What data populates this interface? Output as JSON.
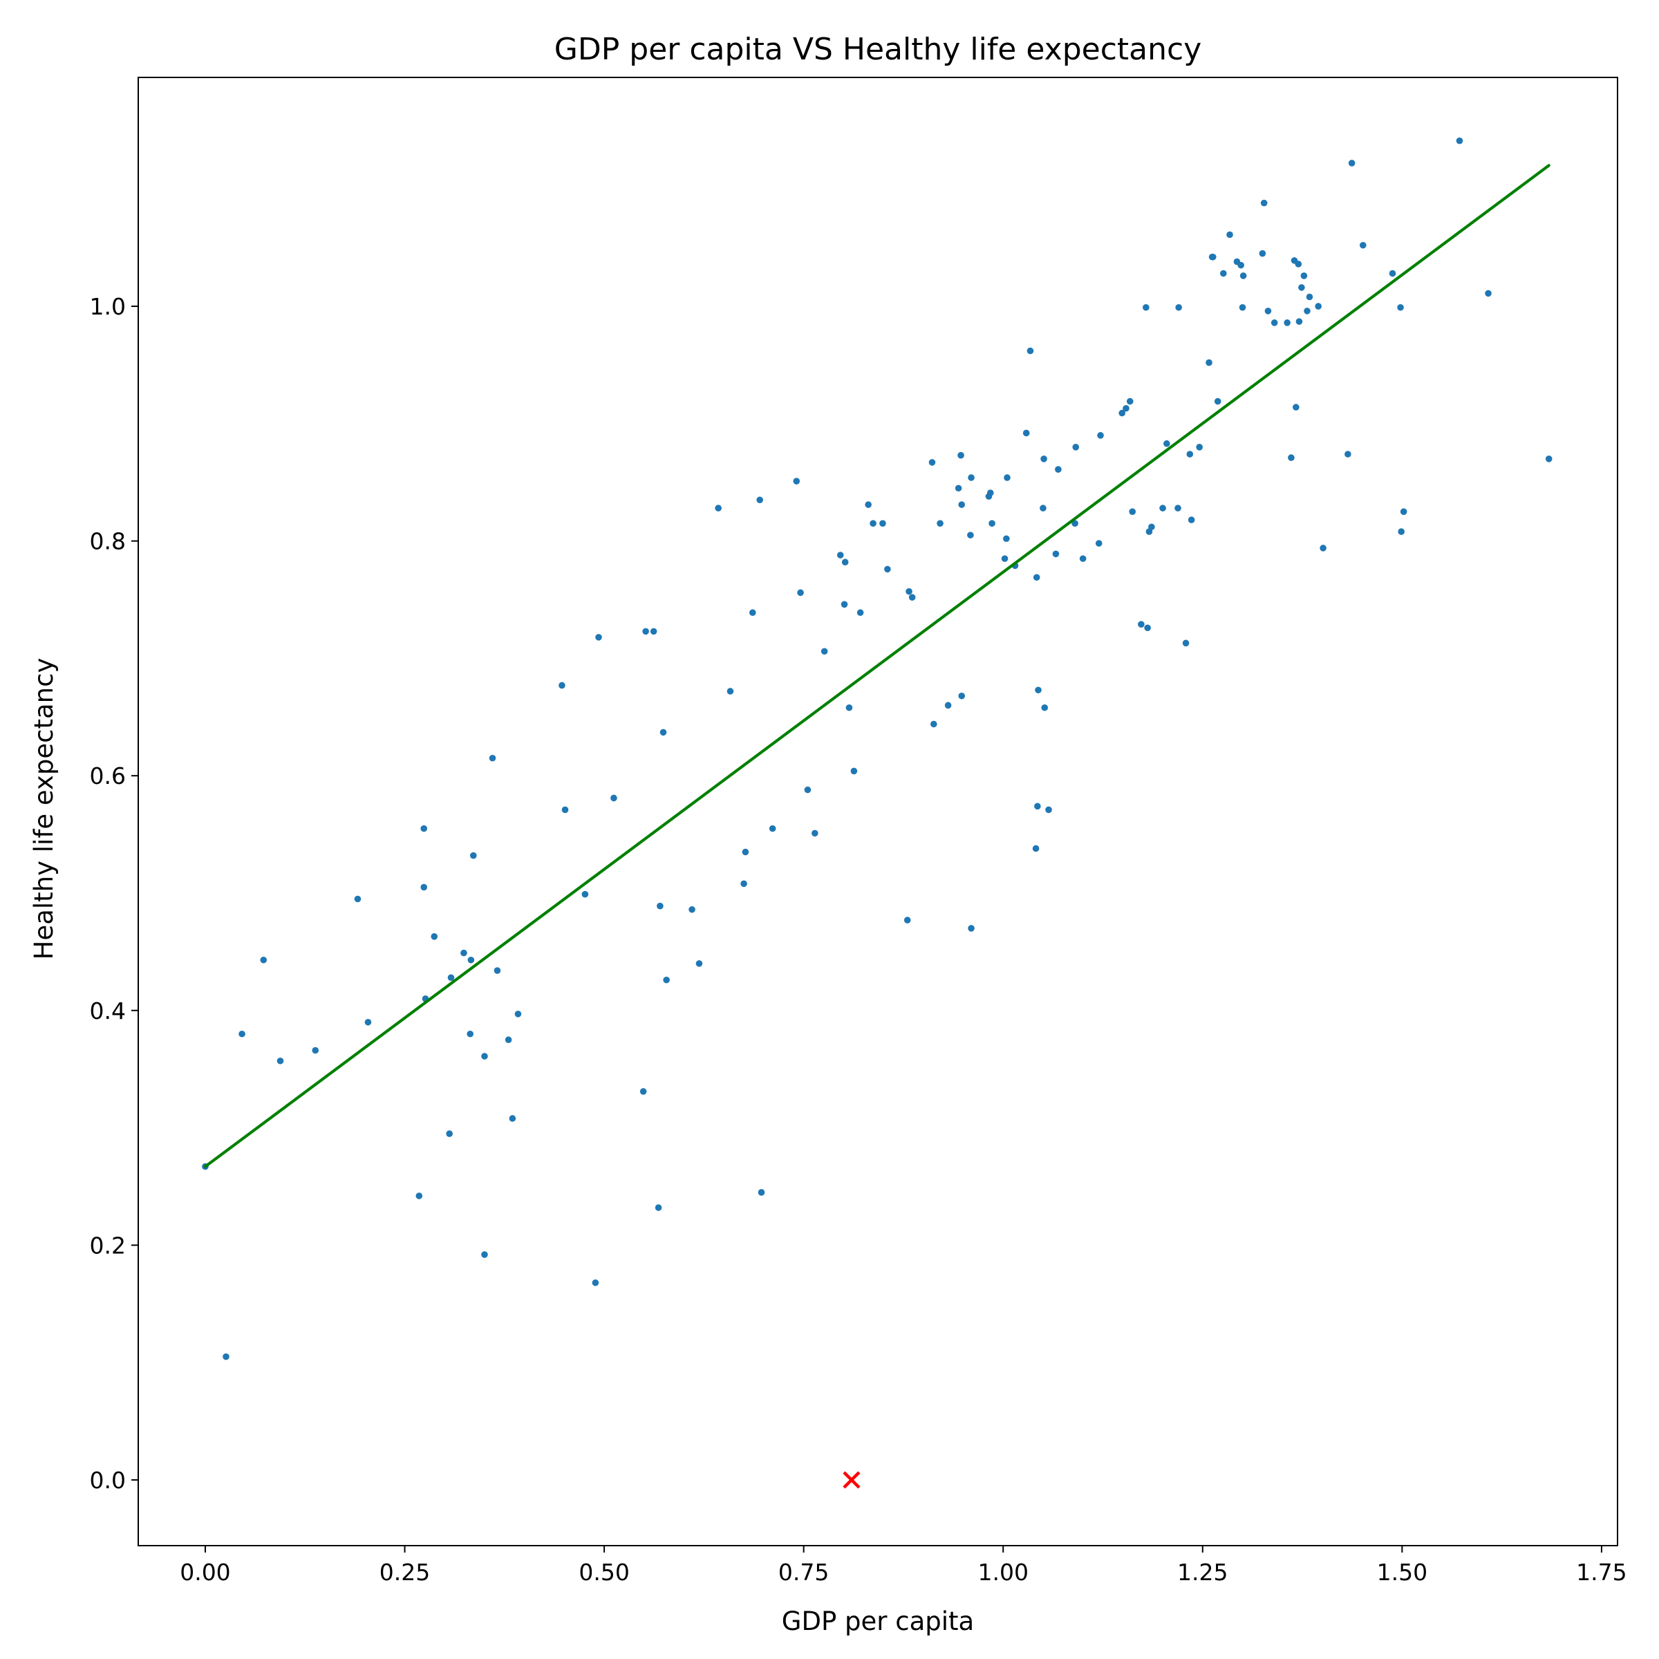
{
  "chart_data": {
    "type": "scatter",
    "title": "GDP per capita VS Healthy life expectancy",
    "xlabel": "GDP per capita",
    "ylabel": "Healthy life expectancy",
    "xlim": [
      -0.084,
      1.77
    ],
    "ylim": [
      -0.056,
      1.195
    ],
    "xticks": [
      0.0,
      0.25,
      0.5,
      0.75,
      1.0,
      1.25,
      1.5,
      1.75
    ],
    "xtick_labels": [
      "0.00",
      "0.25",
      "0.50",
      "0.75",
      "1.00",
      "1.25",
      "1.50",
      "1.75"
    ],
    "yticks": [
      0.0,
      0.2,
      0.4,
      0.6,
      0.8,
      1.0
    ],
    "ytick_labels": [
      "0.0",
      "0.2",
      "0.4",
      "0.6",
      "0.8",
      "1.0"
    ],
    "grid": false,
    "point_color": "#1f77b4",
    "line_color": "#008000",
    "marker_color": "#ff0000",
    "points": [
      [
        0.0,
        0.267
      ],
      [
        0.026,
        0.105
      ],
      [
        0.046,
        0.38
      ],
      [
        0.073,
        0.443
      ],
      [
        0.094,
        0.357
      ],
      [
        0.138,
        0.366
      ],
      [
        0.191,
        0.495
      ],
      [
        0.204,
        0.39
      ],
      [
        0.268,
        0.242
      ],
      [
        0.274,
        0.555
      ],
      [
        0.274,
        0.505
      ],
      [
        0.276,
        0.41
      ],
      [
        0.287,
        0.463
      ],
      [
        0.306,
        0.295
      ],
      [
        0.308,
        0.428
      ],
      [
        0.324,
        0.449
      ],
      [
        0.332,
        0.38
      ],
      [
        0.333,
        0.443
      ],
      [
        0.336,
        0.532
      ],
      [
        0.35,
        0.361
      ],
      [
        0.35,
        0.192
      ],
      [
        0.36,
        0.615
      ],
      [
        0.366,
        0.434
      ],
      [
        0.38,
        0.375
      ],
      [
        0.385,
        0.308
      ],
      [
        0.392,
        0.397
      ],
      [
        0.447,
        0.677
      ],
      [
        0.451,
        0.571
      ],
      [
        0.476,
        0.499
      ],
      [
        0.489,
        0.168
      ],
      [
        0.493,
        0.718
      ],
      [
        0.512,
        0.581
      ],
      [
        0.549,
        0.331
      ],
      [
        0.552,
        0.723
      ],
      [
        0.562,
        0.723
      ],
      [
        0.568,
        0.232
      ],
      [
        0.57,
        0.489
      ],
      [
        0.574,
        0.637
      ],
      [
        0.578,
        0.426
      ],
      [
        0.61,
        0.486
      ],
      [
        0.619,
        0.44
      ],
      [
        0.643,
        0.828
      ],
      [
        0.658,
        0.672
      ],
      [
        0.675,
        0.508
      ],
      [
        0.677,
        0.535
      ],
      [
        0.686,
        0.739
      ],
      [
        0.695,
        0.835
      ],
      [
        0.697,
        0.245
      ],
      [
        0.711,
        0.555
      ],
      [
        0.741,
        0.851
      ],
      [
        0.746,
        0.756
      ],
      [
        0.755,
        0.588
      ],
      [
        0.764,
        0.551
      ],
      [
        0.776,
        0.706
      ],
      [
        0.796,
        0.788
      ],
      [
        0.801,
        0.746
      ],
      [
        0.802,
        0.782
      ],
      [
        0.807,
        0.658
      ],
      [
        0.813,
        0.604
      ],
      [
        0.821,
        0.739
      ],
      [
        0.831,
        0.831
      ],
      [
        0.837,
        0.815
      ],
      [
        0.849,
        0.815
      ],
      [
        0.855,
        0.776
      ],
      [
        0.88,
        0.477
      ],
      [
        0.882,
        0.757
      ],
      [
        0.886,
        0.752
      ],
      [
        0.911,
        0.867
      ],
      [
        0.913,
        0.644
      ],
      [
        0.921,
        0.815
      ],
      [
        0.931,
        0.66
      ],
      [
        0.944,
        0.845
      ],
      [
        0.947,
        0.873
      ],
      [
        0.948,
        0.831
      ],
      [
        0.948,
        0.668
      ],
      [
        0.959,
        0.805
      ],
      [
        0.96,
        0.854
      ],
      [
        0.96,
        0.47
      ],
      [
        0.982,
        0.838
      ],
      [
        0.984,
        0.841
      ],
      [
        0.986,
        0.815
      ],
      [
        1.002,
        0.785
      ],
      [
        1.004,
        0.802
      ],
      [
        1.005,
        0.854
      ],
      [
        1.015,
        0.779
      ],
      [
        1.029,
        0.892
      ],
      [
        1.034,
        0.962
      ],
      [
        1.041,
        0.538
      ],
      [
        1.042,
        0.769
      ],
      [
        1.043,
        0.574
      ],
      [
        1.044,
        0.673
      ],
      [
        1.05,
        0.828
      ],
      [
        1.051,
        0.87
      ],
      [
        1.052,
        0.658
      ],
      [
        1.057,
        0.571
      ],
      [
        1.066,
        0.789
      ],
      [
        1.069,
        0.861
      ],
      [
        1.09,
        0.815
      ],
      [
        1.091,
        0.88
      ],
      [
        1.1,
        0.785
      ],
      [
        1.12,
        0.798
      ],
      [
        1.122,
        0.89
      ],
      [
        1.149,
        0.909
      ],
      [
        1.154,
        0.913
      ],
      [
        1.159,
        0.919
      ],
      [
        1.162,
        0.825
      ],
      [
        1.173,
        0.729
      ],
      [
        1.179,
        0.999
      ],
      [
        1.181,
        0.726
      ],
      [
        1.183,
        0.808
      ],
      [
        1.186,
        0.812
      ],
      [
        1.2,
        0.828
      ],
      [
        1.205,
        0.883
      ],
      [
        1.219,
        0.828
      ],
      [
        1.22,
        0.999
      ],
      [
        1.229,
        0.713
      ],
      [
        1.234,
        0.874
      ],
      [
        1.236,
        0.818
      ],
      [
        1.246,
        0.88
      ],
      [
        1.258,
        0.952
      ],
      [
        1.262,
        1.042
      ],
      [
        1.263,
        1.042
      ],
      [
        1.269,
        0.919
      ],
      [
        1.276,
        1.028
      ],
      [
        1.284,
        1.061
      ],
      [
        1.293,
        1.038
      ],
      [
        1.298,
        1.035
      ],
      [
        1.3,
        0.999
      ],
      [
        1.301,
        1.026
      ],
      [
        1.325,
        1.045
      ],
      [
        1.327,
        1.088
      ],
      [
        1.332,
        0.996
      ],
      [
        1.34,
        0.986
      ],
      [
        1.356,
        0.986
      ],
      [
        1.361,
        0.871
      ],
      [
        1.365,
        1.039
      ],
      [
        1.367,
        0.914
      ],
      [
        1.37,
        1.036
      ],
      [
        1.371,
        0.987
      ],
      [
        1.374,
        1.016
      ],
      [
        1.377,
        1.026
      ],
      [
        1.381,
        0.996
      ],
      [
        1.384,
        1.008
      ],
      [
        1.395,
        1.0
      ],
      [
        1.401,
        0.794
      ],
      [
        1.432,
        0.874
      ],
      [
        1.437,
        1.122
      ],
      [
        1.451,
        1.052
      ],
      [
        1.488,
        1.028
      ],
      [
        1.498,
        0.999
      ],
      [
        1.499,
        0.808
      ],
      [
        1.502,
        0.825
      ],
      [
        1.608,
        1.011
      ],
      [
        1.572,
        1.141
      ],
      [
        1.684,
        0.87
      ]
    ],
    "regression_line": [
      [
        0.0,
        0.267
      ],
      [
        1.684,
        1.12
      ]
    ],
    "highlight": [
      0.81,
      0.0
    ]
  }
}
